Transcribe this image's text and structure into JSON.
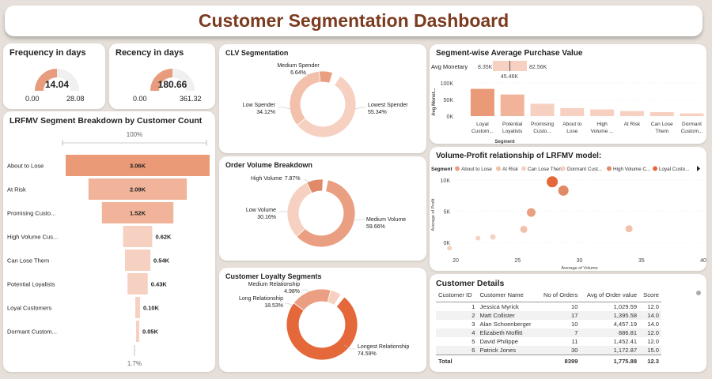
{
  "title": "Customer Segmentation Dashboard",
  "kpis": {
    "frequency": {
      "title": "Frequency in days",
      "value": "14.04",
      "min": "0.00",
      "max": "28.08",
      "fraction": 0.5
    },
    "recency": {
      "title": "Recency in days",
      "value": "180.66",
      "min": "0.00",
      "max": "361.32",
      "fraction": 0.5
    }
  },
  "colors": {
    "light": "#f6d1c1",
    "mid": "#e89c7e",
    "dark": "#e5683a",
    "bg": "#f0f0f0"
  },
  "chart_data": [
    {
      "id": "funnel",
      "type": "bar",
      "title": "LRFMV Segment Breakdown by Customer Count",
      "categories": [
        "About to Lose",
        "At Risk",
        "Promising Custo...",
        "High Volume Cus...",
        "Can Lose Them",
        "Potential Loyalists",
        "Loyal Customers",
        "Dormant Custom..."
      ],
      "values": [
        3060,
        2090,
        1520,
        620,
        540,
        430,
        100,
        50
      ],
      "labels": [
        "3.06K",
        "2.09K",
        "1.52K",
        "0.62K",
        "0.54K",
        "0.43K",
        "0.10K",
        "0.05K"
      ],
      "top_label": "100%",
      "bottom_label": "1.7%"
    },
    {
      "id": "clv",
      "type": "pie",
      "title": "CLV Segmentation",
      "slices": [
        {
          "name": "Lowest Spender",
          "pct": 55.34,
          "color": "#f6d1c1"
        },
        {
          "name": "Low Spender",
          "pct": 34.12,
          "color": "#f2c0ab"
        },
        {
          "name": "Medium Spender",
          "pct": 6.64,
          "color": "#ea9f82"
        }
      ],
      "labels": [
        {
          "name": "Lowest Spender",
          "pct": "55.34%"
        },
        {
          "name": "Low Spender",
          "pct": "34.12%"
        },
        {
          "name": "Medium Spender",
          "pct": "6.64%"
        }
      ]
    },
    {
      "id": "orders",
      "type": "pie",
      "title": "Order Volume Breakdown",
      "slices": [
        {
          "name": "Medium Volume",
          "pct": 59.66,
          "color": "#ea9f82"
        },
        {
          "name": "Low Volume",
          "pct": 30.16,
          "color": "#f6d1c1"
        },
        {
          "name": "High Volume",
          "pct": 7.87,
          "color": "#e08a68"
        }
      ],
      "labels": [
        {
          "name": "Medium Volume",
          "pct": "59.66%"
        },
        {
          "name": "Low Volume",
          "pct": "30.16%"
        },
        {
          "name": "High Volume",
          "pct": "7.87%"
        }
      ]
    },
    {
      "id": "loyalty",
      "type": "pie",
      "title": "Customer Loyalty Segments",
      "slices": [
        {
          "name": "Longest Relationship",
          "pct": 74.59,
          "color": "#e5683a"
        },
        {
          "name": "Long Relationship",
          "pct": 18.53,
          "color": "#ea9f82"
        },
        {
          "name": "Medium Relationship",
          "pct": 4.98,
          "color": "#f6d1c1"
        }
      ],
      "labels": [
        {
          "name": "Longest Relationship",
          "pct": "74.59%"
        },
        {
          "name": "Long Relationship",
          "pct": "18.53%"
        },
        {
          "name": "Medium Relationship",
          "pct": "4.98%"
        }
      ]
    },
    {
      "id": "avgpurchase",
      "type": "bar",
      "title": "Segment-wise Average Purchase Value",
      "xlabel": "Segment",
      "ylabel": "Avg Monet...",
      "slicer": {
        "label": "Avg Monetary",
        "min": "8.35K",
        "max": "82.56K",
        "current": "45.46K",
        "fraction": 0.5
      },
      "categories": [
        [
          "Loyal",
          "Custom..."
        ],
        [
          "Potential",
          "Loyalists"
        ],
        [
          "Promising",
          "Custo..."
        ],
        [
          "About to",
          "Lose"
        ],
        [
          "High",
          "Volume ..."
        ],
        [
          "At Risk"
        ],
        [
          "Can Lose",
          "Them"
        ],
        [
          "Dormant",
          "Custom..."
        ]
      ],
      "values": [
        82000,
        65000,
        37000,
        24000,
        20000,
        15000,
        12000,
        8000
      ],
      "ylim": [
        0,
        100000
      ],
      "yticks": [
        "0K",
        "50K",
        "100K"
      ]
    },
    {
      "id": "scatter",
      "type": "scatter",
      "title": "Volume-Profit relationship of LRFMV model:",
      "legend_title": "Segment",
      "legend": [
        "About to Lose",
        "At Risk",
        "Can Lose Them",
        "Dormant Cust...",
        "High Volume C...",
        "Loyal Custo..."
      ],
      "xlabel": "Average of Volume",
      "ylabel": "Average of Profit",
      "xlim": [
        20,
        40
      ],
      "ylim": [
        -1500,
        11000
      ],
      "xticks": [
        "20",
        "25",
        "30",
        "35",
        "40"
      ],
      "yticks": [
        "0K",
        "5K",
        "10K"
      ],
      "points": [
        {
          "x": 21.8,
          "y": 700,
          "r": 3,
          "color": "#f6d1c1"
        },
        {
          "x": 23.0,
          "y": 900,
          "r": 3.5,
          "color": "#f6d1c1"
        },
        {
          "x": 25.5,
          "y": 2100,
          "r": 4.5,
          "color": "#f2c0ab"
        },
        {
          "x": 26.1,
          "y": 4800,
          "r": 5.5,
          "color": "#ea9f82"
        },
        {
          "x": 27.8,
          "y": 9700,
          "r": 7,
          "color": "#e5683a"
        },
        {
          "x": 28.7,
          "y": 8300,
          "r": 6.5,
          "color": "#e08a68"
        },
        {
          "x": 34.0,
          "y": 2200,
          "r": 4.5,
          "color": "#f2c0ab"
        },
        {
          "x": 19.5,
          "y": -900,
          "r": 3,
          "color": "#f6d1c1"
        }
      ],
      "legend_colors": [
        "#ea9f82",
        "#f2c0ab",
        "#f6d1c1",
        "#f6d1c1",
        "#e08a68",
        "#e5683a"
      ]
    },
    {
      "id": "customers",
      "type": "table",
      "title": "Customer Details",
      "columns": [
        "Customer ID",
        "Customer Name",
        "No of Orders",
        "Avg of Order value",
        "Score"
      ],
      "rows": [
        [
          "1",
          "Jessica Myrick",
          "10",
          "1,029.59",
          "12.0"
        ],
        [
          "2",
          "Matt Collister",
          "17",
          "1,395.58",
          "14.0"
        ],
        [
          "3",
          "Alan Schoenberger",
          "10",
          "4,457.19",
          "14.0"
        ],
        [
          "4",
          "Elizabeth Moffitt",
          "7",
          "886.81",
          "12.0"
        ],
        [
          "5",
          "David Philippe",
          "11",
          "1,452.41",
          "12.0"
        ],
        [
          "6",
          "Patrick Jones",
          "30",
          "1,172.87",
          "15.0"
        ]
      ],
      "total": [
        "Total",
        "",
        "8399",
        "1,775.88",
        "12.3"
      ]
    }
  ]
}
